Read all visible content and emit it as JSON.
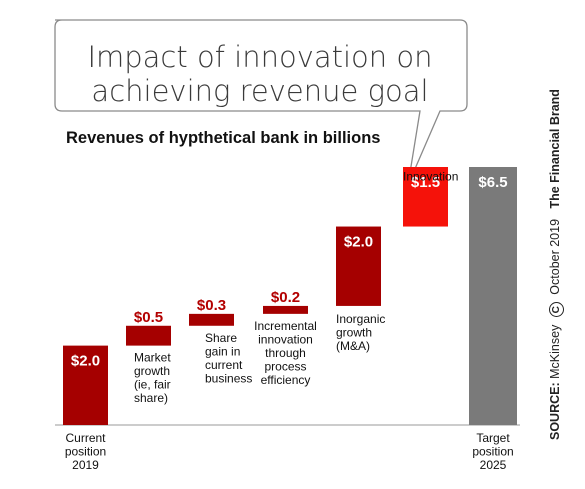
{
  "title_line1": "Impact of innovation on",
  "title_line2": "achieving revenue goal",
  "subtitle": "Revenues of hypthetical bank in billions",
  "source": {
    "label": "SOURCE:",
    "name": "McKinsey",
    "copyright_symbol": "C",
    "date": "October 2019",
    "brand": "The Financial Brand"
  },
  "colors": {
    "dark_red": "#a50000",
    "bright_red": "#f5120a",
    "gray": "#7a7a7a",
    "label_red": "#b30000"
  },
  "chart_data": {
    "type": "waterfall",
    "unit": "billions",
    "steps": [
      {
        "label": [
          "Current",
          "position",
          "2019"
        ],
        "value_label": "$2.0",
        "start": 0,
        "end": 2.0,
        "kind": "total"
      },
      {
        "label": [
          "Market",
          "growth",
          "(ie, fair",
          "share)"
        ],
        "value_label": "$0.5",
        "start": 2.0,
        "end": 2.5,
        "kind": "increment"
      },
      {
        "label": [
          "Share",
          "gain in",
          "current",
          "business"
        ],
        "value_label": "$0.3",
        "start": 2.5,
        "end": 2.8,
        "kind": "increment"
      },
      {
        "label": [
          "Incremental",
          "innovation",
          "through",
          "process",
          "efficiency"
        ],
        "value_label": "$0.2",
        "start": 2.8,
        "end": 3.0,
        "kind": "increment"
      },
      {
        "label": [
          "Inorganic",
          "growth",
          "(M&A)"
        ],
        "value_label": "$2.0",
        "start": 3.0,
        "end": 5.0,
        "kind": "increment"
      },
      {
        "label": [
          "Innovation"
        ],
        "value_label": "$1.5",
        "start": 5.0,
        "end": 6.5,
        "kind": "innovation"
      },
      {
        "label": [
          "Target",
          "position",
          "2025"
        ],
        "value_label": "$6.5",
        "start": 0,
        "end": 6.5,
        "kind": "target"
      }
    ]
  }
}
